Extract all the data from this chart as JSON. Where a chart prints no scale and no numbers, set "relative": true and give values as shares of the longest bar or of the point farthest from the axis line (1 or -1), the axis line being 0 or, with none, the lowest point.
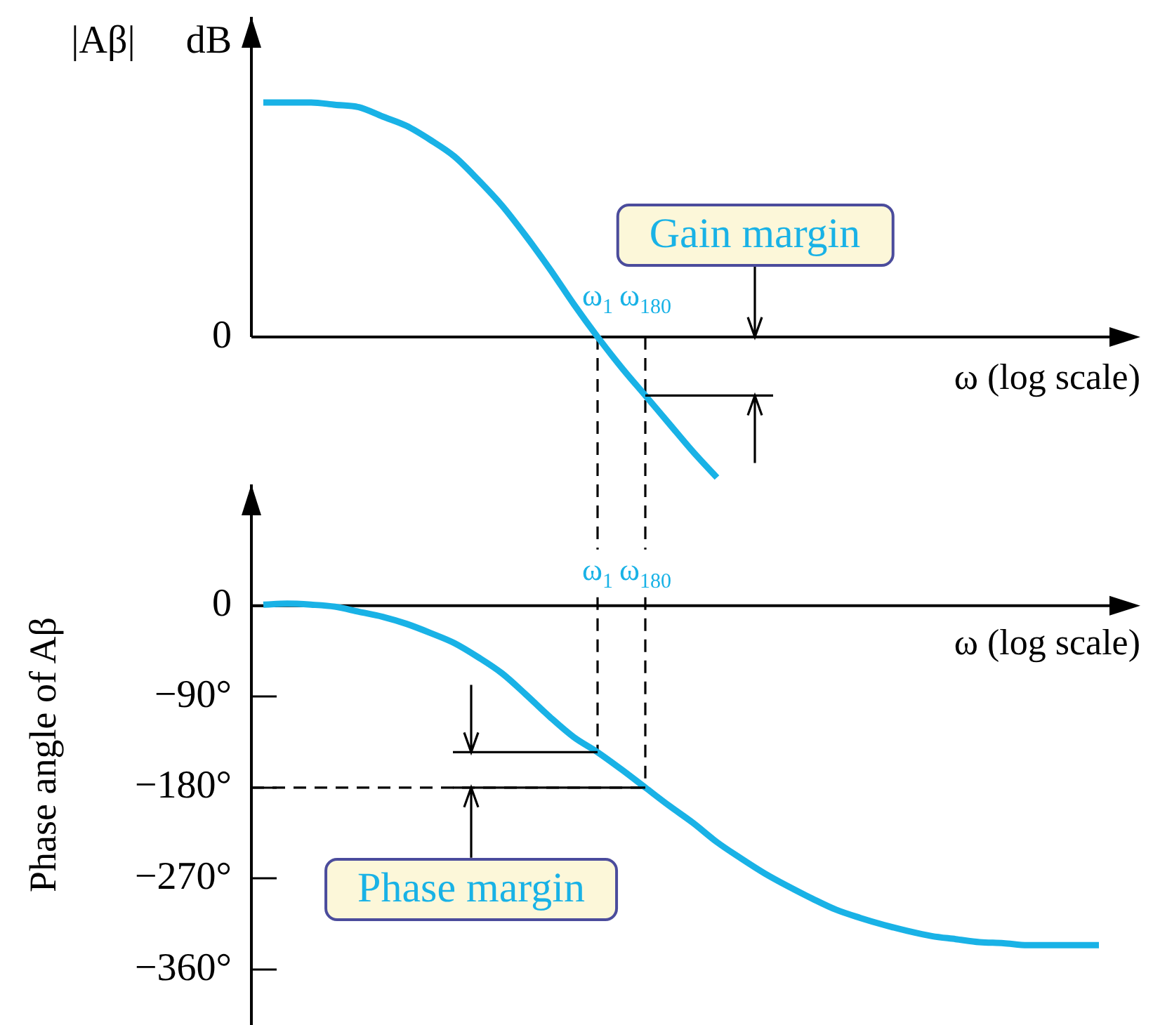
{
  "chart_data": [
    {
      "type": "line",
      "ylabel": "|Aβ| dB",
      "xlabel": "ω (log scale)",
      "relative": true,
      "categories": [
        null,
        null,
        null,
        null,
        null,
        null,
        null,
        null,
        null,
        null,
        null,
        null,
        null,
        null,
        "ω$_{1}$",
        null,
        "ω$_{180}$",
        null,
        null,
        null,
        null,
        null,
        null,
        null,
        null,
        null,
        null,
        null,
        null,
        null,
        null,
        null,
        null,
        null,
        null,
        null
      ],
      "series": [
        {
          "color": "#19b2e6",
          "values": [
            1,
            1,
            1,
            0.99,
            0.98,
            0.94,
            0.9,
            0.84,
            0.77,
            0.67,
            0.56,
            0.43,
            0.29,
            0.14,
            0,
            -0.13,
            -0.25,
            -0.37,
            -0.49,
            -0.6,
            null,
            null,
            null,
            null,
            null,
            null,
            null,
            null,
            null,
            null,
            null,
            null,
            null,
            null,
            null,
            null
          ]
        }
      ],
      "ref_lines": [
        {
          "axis": "x",
          "value": "ω$_{1}$",
          "line_style": "dashed"
        },
        {
          "axis": "x",
          "value": "ω$_{180}$",
          "line_style": "dashed"
        }
      ],
      "annotations": [
        "0",
        "Gain margin"
      ]
    },
    {
      "type": "line",
      "ylabel": "Phase angle of Aβ",
      "xlabel": "ω (log scale)",
      "categories": [
        null,
        null,
        null,
        null,
        null,
        null,
        null,
        null,
        null,
        null,
        null,
        null,
        null,
        null,
        "ω$_{1}$",
        null,
        "ω$_{180}$",
        null,
        null,
        null,
        null,
        null,
        null,
        null,
        null,
        null,
        null,
        null,
        null,
        null,
        null,
        null,
        null,
        null,
        null,
        null
      ],
      "series": [
        {
          "color": "#19b2e6",
          "values": [
            1,
            2,
            1,
            -1,
            -6,
            -11,
            -18,
            -27,
            -37,
            -51,
            -67,
            -88,
            -110,
            -130,
            -145,
            -162,
            -180,
            -198,
            -215,
            -234,
            -250,
            -265,
            -278,
            -290,
            -301,
            -309,
            -316,
            -322,
            -327,
            -330,
            -333,
            -334,
            -336,
            -336,
            -336,
            -336
          ]
        }
      ],
      "ylim": [
        -415,
        120
      ],
      "yticks": [
        0,
        {
          "value": -90,
          "label": "−90°"
        },
        {
          "value": -180,
          "label": "−180°"
        },
        {
          "value": -270,
          "label": "−270°"
        },
        {
          "value": -360,
          "label": "−360°"
        }
      ],
      "ref_lines": [
        {
          "axis": "x",
          "value": "ω$_{1}$",
          "line_style": "dashed"
        },
        {
          "axis": "x",
          "value": "ω$_{180}$",
          "line_style": "dashed"
        },
        {
          "axis": "y",
          "value": -180,
          "line_style": "dashed"
        }
      ],
      "annotations": [
        {
          "text": "Phase margin",
          "y": -180
        }
      ]
    }
  ]
}
